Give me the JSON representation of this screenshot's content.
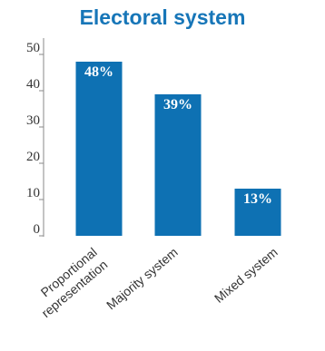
{
  "chart_data": {
    "type": "bar",
    "title": "Electoral system",
    "categories": [
      [
        "Proportional",
        "representation"
      ],
      [
        "Majority system"
      ],
      [
        "Mixed system"
      ]
    ],
    "values": [
      48,
      39,
      13
    ],
    "data_labels": [
      "48%",
      "39%",
      "13%"
    ],
    "yticks": [
      "0",
      "10",
      "20",
      "30",
      "40",
      "50"
    ],
    "ylim": [
      0,
      55
    ],
    "grid": false,
    "bar_color": "#0e71b3",
    "title_color": "#1776b8",
    "text_color": "#333333"
  }
}
